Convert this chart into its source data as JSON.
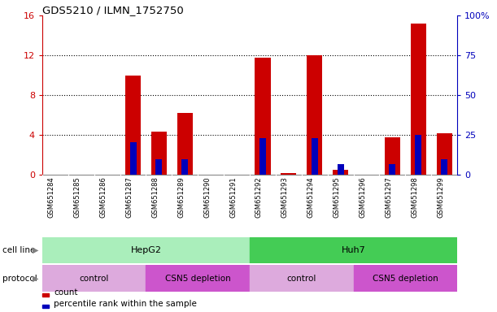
{
  "title": "GDS5210 / ILMN_1752750",
  "samples": [
    "GSM651284",
    "GSM651285",
    "GSM651286",
    "GSM651287",
    "GSM651288",
    "GSM651289",
    "GSM651290",
    "GSM651291",
    "GSM651292",
    "GSM651293",
    "GSM651294",
    "GSM651295",
    "GSM651296",
    "GSM651297",
    "GSM651298",
    "GSM651299"
  ],
  "counts": [
    0,
    0,
    0,
    10.0,
    4.3,
    6.2,
    0,
    0,
    11.8,
    0.2,
    12.0,
    0.5,
    0,
    3.8,
    15.2,
    4.2
  ],
  "percentile_ranks": [
    0,
    0,
    0,
    20.5,
    9.5,
    9.5,
    0,
    0,
    23.0,
    0,
    23.0,
    6.5,
    0,
    6.5,
    25.0,
    9.5
  ],
  "ylim_left": [
    0,
    16
  ],
  "ylim_right": [
    0,
    100
  ],
  "yticks_left": [
    0,
    4,
    8,
    12,
    16
  ],
  "ytick_labels_left": [
    "0",
    "4",
    "8",
    "12",
    "16"
  ],
  "ytick_labels_right": [
    "0",
    "25",
    "50",
    "75",
    "100%"
  ],
  "grid_values": [
    4,
    8,
    12
  ],
  "bar_color_red": "#cc0000",
  "bar_color_blue": "#0000bb",
  "bar_width": 0.6,
  "blue_bar_width": 0.25,
  "cell_line_groups": [
    {
      "name": "HepG2",
      "start": 0,
      "end": 8,
      "color": "#aaeebb"
    },
    {
      "name": "Huh7",
      "start": 8,
      "end": 16,
      "color": "#44cc55"
    }
  ],
  "protocol_groups": [
    {
      "name": "control",
      "start": 0,
      "end": 4,
      "color": "#ddaadd"
    },
    {
      "name": "CSN5 depletion",
      "start": 4,
      "end": 8,
      "color": "#cc55cc"
    },
    {
      "name": "control",
      "start": 8,
      "end": 12,
      "color": "#ddaadd"
    },
    {
      "name": "CSN5 depletion",
      "start": 12,
      "end": 16,
      "color": "#cc55cc"
    }
  ],
  "left_axis_color": "#cc0000",
  "right_axis_color": "#0000bb",
  "tick_area_color": "#cccccc",
  "bg_color": "#ffffff",
  "label_fontsize": 7.5,
  "tick_fontsize": 8,
  "sample_fontsize": 6
}
